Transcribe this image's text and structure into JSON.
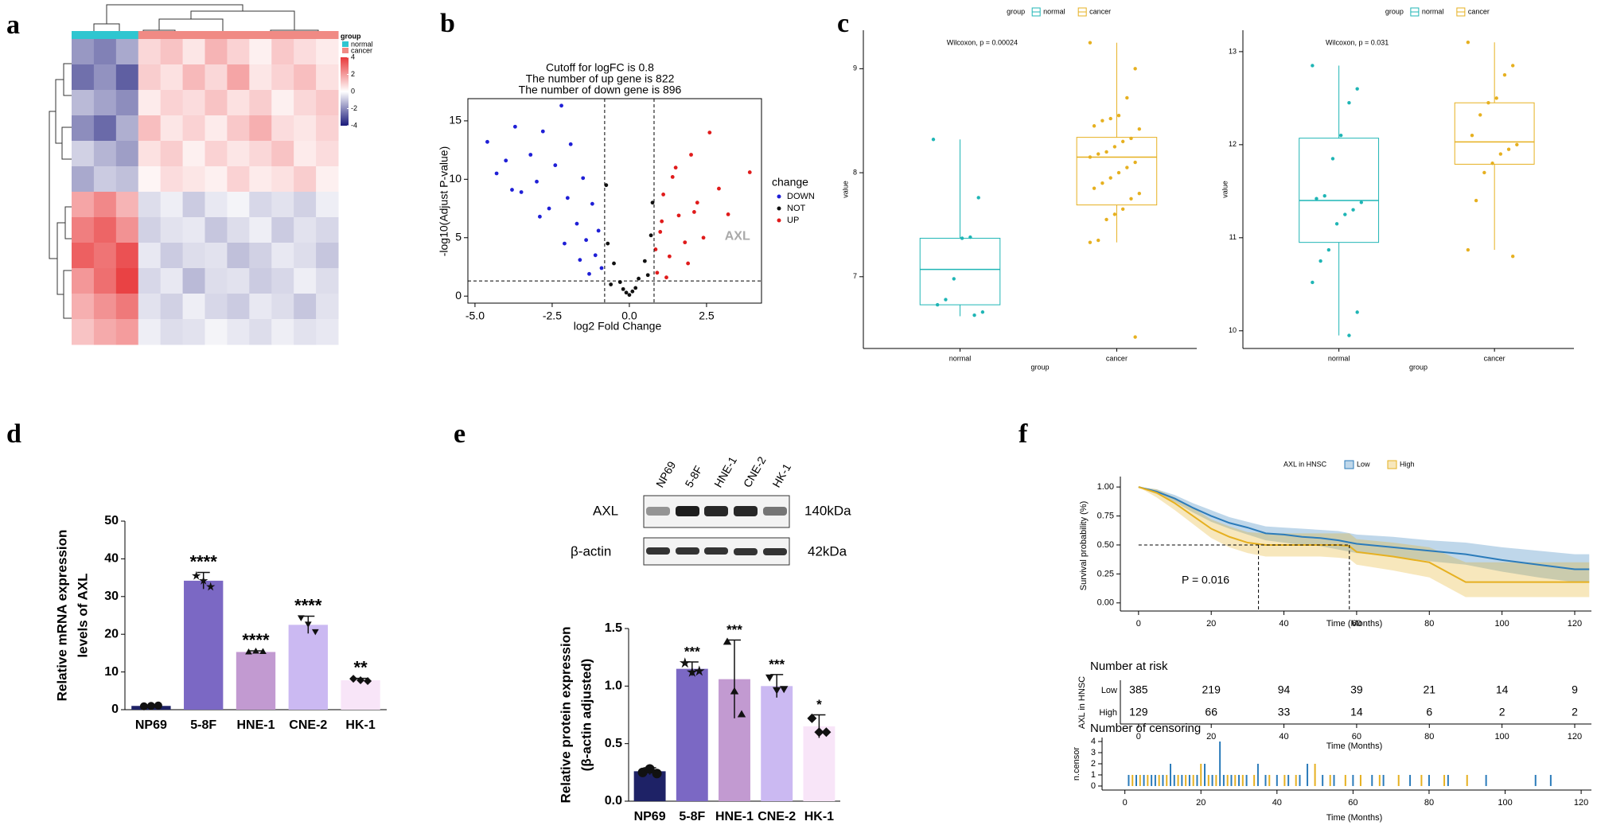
{
  "panel_labels": [
    "a",
    "b",
    "c",
    "d",
    "e",
    "f"
  ],
  "chart_data": [
    {
      "type": "heatmap",
      "legend_title": "group",
      "groups": [
        "normal",
        "cancer"
      ],
      "group_colors": [
        "#2fc6d0",
        "#f08a84"
      ],
      "column_groups": [
        0,
        0,
        0,
        1,
        1,
        1,
        1,
        1,
        1,
        1,
        1,
        1
      ],
      "colorbar_ticks": [
        4,
        2,
        0,
        -2,
        -4
      ],
      "color_range": [
        -4,
        4
      ],
      "colors": [
        "#1a1a7a",
        "#ffffff",
        "#e8383a"
      ],
      "matrix": [
        [
          -1.8,
          -2.2,
          -1.5,
          0.8,
          1.2,
          0.5,
          1.5,
          0.9,
          0.3,
          1.1,
          0.7,
          0.4
        ],
        [
          -2.5,
          -1.9,
          -2.8,
          1.0,
          0.6,
          1.4,
          0.8,
          1.8,
          0.5,
          0.9,
          1.3,
          0.6
        ],
        [
          -1.2,
          -1.6,
          -2.0,
          0.4,
          0.9,
          0.7,
          1.2,
          0.6,
          1.0,
          0.3,
          0.8,
          1.1
        ],
        [
          -2.0,
          -2.6,
          -1.4,
          1.3,
          0.5,
          0.9,
          0.4,
          1.1,
          1.6,
          0.7,
          0.5,
          0.9
        ],
        [
          -0.8,
          -1.3,
          -1.7,
          0.6,
          1.0,
          0.3,
          0.9,
          0.5,
          0.8,
          1.2,
          0.4,
          0.7
        ],
        [
          -1.5,
          -0.9,
          -1.1,
          0.2,
          0.7,
          0.5,
          0.3,
          0.9,
          0.4,
          0.6,
          1.0,
          0.3
        ],
        [
          1.8,
          2.4,
          1.5,
          -0.6,
          -0.3,
          -0.9,
          -0.4,
          -0.2,
          -0.7,
          -0.5,
          -0.8,
          -0.3
        ],
        [
          2.6,
          3.1,
          2.2,
          -0.8,
          -0.5,
          -0.4,
          -1.0,
          -0.6,
          -0.3,
          -0.9,
          -0.5,
          -0.7
        ],
        [
          3.2,
          2.8,
          3.5,
          -0.4,
          -0.9,
          -0.6,
          -0.5,
          -1.1,
          -0.8,
          -0.4,
          -0.6,
          -1.0
        ],
        [
          2.1,
          2.9,
          3.8,
          -0.7,
          -0.4,
          -1.2,
          -0.6,
          -0.5,
          -0.9,
          -0.7,
          -0.3,
          -0.6
        ],
        [
          1.6,
          2.2,
          2.7,
          -0.5,
          -0.8,
          -0.3,
          -0.7,
          -0.9,
          -0.4,
          -0.6,
          -1.0,
          -0.5
        ],
        [
          1.2,
          1.7,
          2.0,
          -0.3,
          -0.6,
          -0.5,
          -0.2,
          -0.4,
          -0.6,
          -0.3,
          -0.5,
          -0.4
        ]
      ]
    },
    {
      "type": "scatter",
      "annotations": [
        "Cutoff for logFC is 0.8",
        "The number of up gene is 822",
        "The number of down gene is 896"
      ],
      "xlabel": "log2 Fold Change",
      "ylabel": "-log10(Adjust P-value)",
      "xlim": [
        -5.23,
        4.28
      ],
      "ylim": [
        -0.6,
        16.9
      ],
      "xticks": [
        {
          "value": -5,
          "label": "-5.0"
        },
        -2.5,
        {
          "value": 0,
          "label": "0.0"
        },
        2.5
      ],
      "yticks": [
        0,
        5,
        10,
        15
      ],
      "legend_title": "change",
      "thresholds": {
        "x": [
          -0.8,
          0.8
        ],
        "y": 1.3
      },
      "highlight": {
        "label": "AXL",
        "x": 3.5,
        "y": 5.1
      },
      "series": [
        {
          "name": "DOWN",
          "color": "#1f1fd6",
          "x": [
            -4.6,
            -4.3,
            -4.0,
            -3.7,
            -3.5,
            -3.2,
            -3.0,
            -2.8,
            -2.6,
            -2.4,
            -2.2,
            -2.0,
            -1.9,
            -1.7,
            -1.5,
            -1.4,
            -1.2,
            -1.1,
            -1.0,
            -0.9,
            -3.8,
            -2.9,
            -2.1,
            -1.6,
            -1.3
          ],
          "values": [
            13.2,
            10.5,
            11.6,
            14.5,
            8.9,
            12.1,
            9.8,
            14.1,
            7.5,
            11.2,
            16.3,
            8.4,
            13.0,
            6.2,
            10.1,
            4.8,
            7.9,
            3.5,
            5.6,
            2.4,
            9.1,
            6.8,
            4.5,
            3.1,
            1.9
          ]
        },
        {
          "name": "NOT",
          "color": "#111111",
          "x": [
            -0.7,
            -0.5,
            -0.3,
            -0.1,
            0.0,
            0.1,
            0.3,
            0.5,
            0.7,
            -0.6,
            0.6,
            -0.2,
            0.2,
            -0.75,
            0.75
          ],
          "values": [
            4.5,
            2.8,
            1.2,
            0.3,
            0.1,
            0.4,
            1.5,
            3.0,
            5.2,
            1.0,
            1.8,
            0.6,
            0.7,
            9.5,
            8.0
          ]
        },
        {
          "name": "UP",
          "color": "#e01b1b",
          "x": [
            0.9,
            1.0,
            1.1,
            1.3,
            1.4,
            1.6,
            1.8,
            2.0,
            2.2,
            2.4,
            2.6,
            2.9,
            3.2,
            1.2,
            1.5,
            1.9,
            2.1,
            0.85,
            1.05,
            3.9
          ],
          "values": [
            2.0,
            5.5,
            8.7,
            3.4,
            10.2,
            6.9,
            4.6,
            12.1,
            8.0,
            5.0,
            14.0,
            9.2,
            7.0,
            1.6,
            11.0,
            2.8,
            7.2,
            4.0,
            6.4,
            10.6
          ]
        }
      ]
    },
    {
      "type": "box",
      "legend_title": "group",
      "categories": [
        "normal",
        "cancer"
      ],
      "colors": [
        "#1fb5b5",
        "#e6b020"
      ],
      "annotation": "Wilcoxon, p = 0.00024",
      "xlabel": "group",
      "ylabel": "value",
      "ylim": [
        6.31,
        9.37
      ],
      "yticks": [
        7,
        8,
        9
      ],
      "boxes": [
        {
          "min": 6.62,
          "q1": 6.73,
          "median": 7.07,
          "q3": 7.37,
          "max": 8.32
        },
        {
          "min": 7.33,
          "q1": 7.69,
          "median": 8.15,
          "q3": 8.34,
          "max": 9.25
        }
      ],
      "points": [
        [
          8.32,
          7.76,
          7.38,
          7.37,
          6.98,
          6.78,
          6.73,
          6.66,
          6.63
        ],
        [
          9.25,
          9.0,
          8.72,
          8.55,
          8.52,
          8.5,
          8.45,
          8.42,
          8.33,
          8.3,
          8.25,
          8.2,
          8.18,
          8.15,
          8.1,
          8.05,
          8.0,
          7.95,
          7.9,
          7.85,
          7.8,
          7.75,
          7.65,
          7.6,
          7.55,
          7.35,
          7.33,
          6.42
        ]
      ]
    },
    {
      "type": "box",
      "legend_title": "group",
      "categories": [
        "normal",
        "cancer"
      ],
      "colors": [
        "#1fb5b5",
        "#e6b020"
      ],
      "annotation": "Wilcoxon, p = 0.031",
      "xlabel": "group",
      "ylabel": "value",
      "ylim": [
        9.81,
        13.23
      ],
      "yticks": [
        10,
        11,
        12,
        13
      ],
      "boxes": [
        {
          "min": 9.95,
          "q1": 10.95,
          "median": 11.4,
          "q3": 12.07,
          "max": 12.85
        },
        {
          "min": 10.87,
          "q1": 11.79,
          "median": 12.03,
          "q3": 12.45,
          "max": 13.1
        }
      ],
      "points": [
        [
          12.85,
          12.6,
          12.45,
          12.1,
          11.85,
          11.45,
          11.42,
          11.38,
          11.3,
          11.25,
          11.15,
          10.87,
          10.75,
          10.52,
          10.2,
          9.95
        ],
        [
          13.1,
          12.85,
          12.75,
          12.5,
          12.45,
          12.32,
          12.1,
          12.0,
          11.95,
          11.9,
          11.8,
          11.7,
          11.4,
          10.87,
          10.8
        ]
      ]
    },
    {
      "type": "bar",
      "ylabel": [
        "Relative mRNA expression",
        "levels of AXL"
      ],
      "categories": [
        "NP69",
        "5-8F",
        "HNE-1",
        "CNE-2",
        "HK-1"
      ],
      "values": [
        1,
        34.2,
        15.3,
        22.5,
        7.8
      ],
      "errors": [
        0.15,
        2.2,
        0.3,
        2.3,
        0.5
      ],
      "significance": [
        null,
        "****",
        "****",
        "****",
        "**"
      ],
      "colors": [
        "#1e2266",
        "#7b68c4",
        "#c29ad1",
        "#cbb9f2",
        "#f8e5f8"
      ],
      "markers": [
        "circle",
        "star",
        "triangle",
        "triangle-down",
        "diamond"
      ],
      "points": [
        [
          0.9,
          1.0,
          1.1
        ],
        [
          35.5,
          34.2,
          32.6
        ],
        [
          15.2,
          15.4,
          15.3
        ],
        [
          24.5,
          22.8,
          20.8
        ],
        [
          8.2,
          7.8,
          7.6
        ]
      ],
      "ylim": [
        0,
        50
      ],
      "yticks": [
        0,
        10,
        20,
        30,
        40,
        50
      ]
    },
    {
      "type": "bar",
      "ylabel": [
        "Relative protein expression",
        "(β-actin adjusted)"
      ],
      "categories": [
        "NP69",
        "5-8F",
        "HNE-1",
        "CNE-2",
        "HK-1"
      ],
      "values": [
        0.26,
        1.15,
        1.06,
        1.0,
        0.65
      ],
      "errors": [
        0.03,
        0.06,
        0.34,
        0.1,
        0.1
      ],
      "significance": [
        null,
        "***",
        "***",
        "***",
        "*"
      ],
      "colors": [
        "#1e2266",
        "#7b68c4",
        "#c29ad1",
        "#cbb9f2",
        "#f8e5f8"
      ],
      "markers": [
        "circle",
        "star",
        "triangle",
        "triangle-down",
        "diamond"
      ],
      "points": [
        [
          0.25,
          0.28,
          0.24
        ],
        [
          1.2,
          1.12,
          1.13
        ],
        [
          1.38,
          0.95,
          0.75
        ],
        [
          1.08,
          0.97,
          0.98
        ],
        [
          0.72,
          0.6,
          0.6
        ]
      ],
      "ylim": [
        0,
        1.5
      ],
      "yticks": [
        {
          "value": 0,
          "label": "0.0"
        },
        0.5,
        {
          "value": 1,
          "label": "1.0"
        },
        1.5
      ],
      "blot": {
        "rows": [
          "AXL",
          "β-actin"
        ],
        "sizes": [
          "140kDa",
          "42kDa"
        ]
      }
    },
    {
      "type": "line",
      "legend_title": "AXL in HNSC",
      "ylabel": "Survival probability (%)",
      "xlabel": "Time (Months)",
      "annotation": "P = 0.016",
      "xlim": [
        -5,
        124.6
      ],
      "ylim": [
        -0.07,
        1.09
      ],
      "xticks": [
        0,
        20,
        40,
        60,
        80,
        100,
        120
      ],
      "yticks": [
        {
          "value": 0,
          "label": "0.00"
        },
        0.25,
        {
          "value": 0.5,
          "label": "0.50"
        },
        0.75,
        {
          "value": 1,
          "label": "1.00"
        }
      ],
      "median_line": {
        "y": 0.5,
        "x": [
          33,
          58
        ]
      },
      "series": [
        {
          "name": "Low",
          "color": "#2b7bba",
          "x": [
            0,
            5,
            10,
            15,
            20,
            25,
            30,
            35,
            40,
            45,
            50,
            55,
            60,
            70,
            80,
            90,
            100,
            110,
            120,
            124
          ],
          "values": [
            1,
            0.96,
            0.9,
            0.82,
            0.75,
            0.69,
            0.65,
            0.6,
            0.59,
            0.57,
            0.56,
            0.54,
            0.51,
            0.48,
            0.45,
            0.42,
            0.37,
            0.33,
            0.29,
            0.29
          ],
          "lower": [
            1,
            0.94,
            0.87,
            0.78,
            0.7,
            0.64,
            0.59,
            0.54,
            0.52,
            0.5,
            0.49,
            0.46,
            0.43,
            0.4,
            0.36,
            0.33,
            0.27,
            0.22,
            0.18,
            0.18
          ],
          "upper": [
            1,
            0.98,
            0.93,
            0.86,
            0.8,
            0.74,
            0.7,
            0.66,
            0.65,
            0.64,
            0.63,
            0.62,
            0.59,
            0.57,
            0.54,
            0.52,
            0.48,
            0.45,
            0.42,
            0.42
          ]
        },
        {
          "name": "High",
          "color": "#e6b020",
          "x": [
            0,
            5,
            10,
            15,
            20,
            25,
            30,
            35,
            40,
            45,
            50,
            55,
            58,
            60,
            70,
            80,
            90,
            100,
            110,
            120,
            124
          ],
          "values": [
            1,
            0.95,
            0.86,
            0.75,
            0.64,
            0.57,
            0.52,
            0.5,
            0.5,
            0.5,
            0.5,
            0.5,
            0.49,
            0.44,
            0.4,
            0.35,
            0.18,
            0.18,
            0.18,
            0.18,
            0.18
          ],
          "lower": [
            1,
            0.91,
            0.8,
            0.68,
            0.56,
            0.48,
            0.43,
            0.4,
            0.4,
            0.4,
            0.4,
            0.39,
            0.38,
            0.33,
            0.28,
            0.22,
            0.05,
            0.05,
            0.05,
            0.05,
            0.05
          ],
          "upper": [
            1,
            0.98,
            0.91,
            0.82,
            0.72,
            0.66,
            0.61,
            0.6,
            0.6,
            0.6,
            0.6,
            0.6,
            0.6,
            0.55,
            0.52,
            0.48,
            0.35,
            0.35,
            0.35,
            0.35,
            0.35
          ]
        }
      ]
    },
    {
      "type": "table",
      "title": "Number at risk",
      "ylabel": "AXL in HNSC",
      "xlabel": "Time (Months)",
      "rows": [
        "Low",
        "High"
      ],
      "colors": [
        "#2b7bba",
        "#e6b020"
      ],
      "x": [
        0,
        20,
        40,
        60,
        80,
        100,
        120
      ],
      "values": [
        [
          385,
          219,
          94,
          39,
          21,
          14,
          9
        ],
        [
          129,
          66,
          33,
          14,
          6,
          2,
          2
        ]
      ],
      "xlim": [
        -5,
        124.6
      ],
      "xticks": [
        0,
        20,
        40,
        60,
        80,
        100,
        120
      ]
    },
    {
      "type": "bar",
      "title": "Number of censoring",
      "ylabel": "n.censor",
      "xlabel": "Time (Months)",
      "xlim": [
        -6,
        122.7
      ],
      "ylim": [
        -0.36,
        4.36
      ],
      "yticks": [
        0,
        1,
        2,
        3,
        4
      ],
      "xticks": [
        0,
        20,
        40,
        60,
        80,
        100,
        120
      ],
      "series": [
        {
          "color": "#2b7bba",
          "x": [
            1,
            3,
            5,
            7,
            8,
            10,
            12,
            13,
            15,
            17,
            19,
            21,
            23,
            25,
            26,
            28,
            30,
            32,
            35,
            37,
            40,
            43,
            46,
            48,
            52,
            55,
            60,
            65,
            68,
            75,
            80,
            85,
            95,
            108,
            112
          ],
          "values": [
            1,
            1,
            1,
            1,
            1,
            1,
            2,
            1,
            1,
            1,
            1,
            2,
            1,
            4,
            1,
            1,
            1,
            1,
            2,
            1,
            1,
            1,
            1,
            2,
            1,
            1,
            1,
            1,
            1,
            1,
            1,
            1,
            1,
            1,
            1
          ]
        },
        {
          "color": "#e6b020",
          "x": [
            2,
            4,
            6,
            9,
            11,
            14,
            16,
            18,
            20,
            22,
            24,
            27,
            29,
            31,
            34,
            38,
            42,
            45,
            50,
            54,
            58,
            62,
            67,
            72,
            78,
            84,
            90
          ],
          "values": [
            1,
            1,
            1,
            1,
            1,
            1,
            1,
            1,
            2,
            1,
            1,
            1,
            1,
            1,
            1,
            1,
            1,
            1,
            2,
            1,
            1,
            1,
            1,
            1,
            1,
            1,
            1
          ]
        }
      ]
    }
  ]
}
